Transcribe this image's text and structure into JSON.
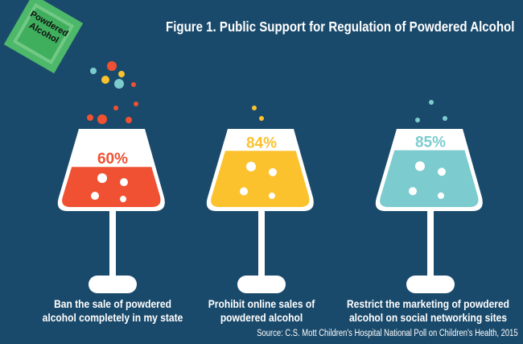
{
  "title": "Figure 1. Public Support for Regulation of Powdered Alcohol",
  "packet": {
    "line1": "Powdered",
    "line2": "Alcohol"
  },
  "chart_data": {
    "type": "bar",
    "title": "Figure 1. Public Support for Regulation of Powdered Alcohol",
    "categories": [
      "Ban the sale of powdered alcohol completely in my state",
      "Prohibit online sales of powdered alcohol",
      "Restrict the marketing of powdered alcohol on social networking sites"
    ],
    "values": [
      60,
      84,
      85
    ],
    "labels": [
      "60%",
      "84%",
      "85%"
    ],
    "colors": [
      "#f05133",
      "#fcc22e",
      "#7ccccf"
    ],
    "ylim": [
      0,
      100
    ]
  },
  "captions": [
    {
      "line1": "Ban the sale of powdered",
      "line2": "alcohol completely in my state"
    },
    {
      "line1": "Prohibit online sales of",
      "line2": "powdered alcohol"
    },
    {
      "line1": "Restrict the marketing of powdered",
      "line2": "alcohol on social networking sites"
    }
  ],
  "source": "Source: C.S. Mott Children's Hospital National Poll on Children's Health, 2015",
  "colors": {
    "background": "#1a4a6b",
    "glass": "#ffffff",
    "packet": "#4db86a"
  }
}
